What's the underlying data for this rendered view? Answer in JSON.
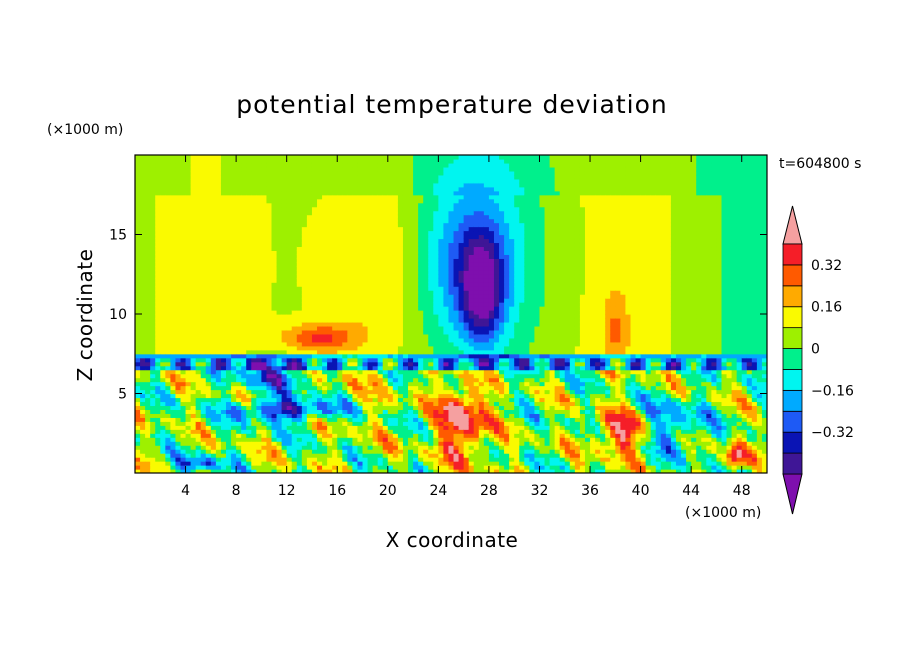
{
  "chart_data": {
    "type": "heatmap",
    "title": "potential temperature deviation",
    "xlabel": "X coordinate",
    "ylabel": "Z coordinate",
    "x_unit_label": "(×1000 m)",
    "y_unit_label": "(×1000 m)",
    "time_label": "t=604800 s",
    "xlim": [
      0,
      50
    ],
    "ylim": [
      0,
      20
    ],
    "x_ticks": [
      4,
      8,
      12,
      16,
      20,
      24,
      28,
      32,
      36,
      40,
      44,
      48
    ],
    "y_ticks": [
      5,
      10,
      15
    ],
    "colorbar": {
      "levels": [
        -0.48,
        -0.4,
        -0.32,
        -0.24,
        -0.16,
        -0.08,
        0,
        0.08,
        0.16,
        0.24,
        0.32,
        0.4
      ],
      "labeled_levels": [
        -0.32,
        -0.16,
        0,
        0.16,
        0.32
      ],
      "tick_labels": [
        "0.32",
        "0.16",
        "0",
        "−0.16",
        "−0.32"
      ],
      "colors": [
        "#7e0fae",
        "#3f1696",
        "#0a14b4",
        "#1e5af5",
        "#00aaff",
        "#00f5f0",
        "#00f08c",
        "#9ef000",
        "#fafa00",
        "#ffaa00",
        "#ff5a00",
        "#f51e28",
        "#f5a0a0"
      ]
    },
    "features": [
      {
        "x": 26,
        "z": 3.5,
        "value": 0.44,
        "sx": 2.0,
        "sz": 2.6
      },
      {
        "x": 27.5,
        "z": 11.5,
        "value": -0.4,
        "sx": 1.6,
        "sz": 3.2
      },
      {
        "x": 26.5,
        "z": 13,
        "value": -0.24,
        "sx": 3.5,
        "sz": 4.8
      },
      {
        "x": 27,
        "z": 14,
        "value": -0.12,
        "sx": 6.0,
        "sz": 7.0
      },
      {
        "x": 18.5,
        "z": 13,
        "value": 0.16,
        "sx": 5.0,
        "sz": 7.5
      },
      {
        "x": 14.5,
        "z": 8.5,
        "value": 0.26,
        "sx": 3.0,
        "sz": 0.9
      },
      {
        "x": 12.0,
        "z": 4.0,
        "value": -0.44,
        "sx": 4.0,
        "sz": 0.7
      },
      {
        "x": 11.0,
        "z": 6.2,
        "value": -0.3,
        "sx": 3.0,
        "sz": 1.0
      },
      {
        "x": 38.5,
        "z": 2.5,
        "value": 0.36,
        "sx": 2.0,
        "sz": 1.4
      },
      {
        "x": 38.0,
        "z": 9.0,
        "value": 0.15,
        "sx": 1.0,
        "sz": 2.5
      },
      {
        "x": 42.5,
        "z": 3.0,
        "value": -0.24,
        "sx": 2.5,
        "sz": 1.8
      },
      {
        "x": 47.5,
        "z": 1.0,
        "value": 0.42,
        "sx": 0.8,
        "sz": 0.8
      },
      {
        "x": 5.0,
        "z": 0.6,
        "value": -0.3,
        "sx": 2.0,
        "sz": 0.5
      }
    ]
  }
}
